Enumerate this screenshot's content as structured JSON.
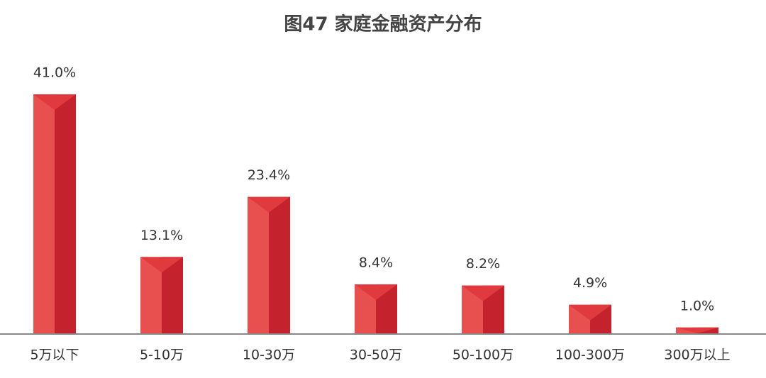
{
  "chart_data": {
    "type": "bar",
    "title": "图47  家庭金融资产分布",
    "categories": [
      "5万以下",
      "5-10万",
      "10-30万",
      "30-50万",
      "50-100万",
      "100-300万",
      "300万以上"
    ],
    "values": [
      41.0,
      13.1,
      23.4,
      8.4,
      8.2,
      4.9,
      1.0
    ],
    "value_labels": [
      "41.0%",
      "13.1%",
      "23.4%",
      "8.4%",
      "8.2%",
      "4.9%",
      "1.0%"
    ],
    "color": "#e8504f"
  }
}
